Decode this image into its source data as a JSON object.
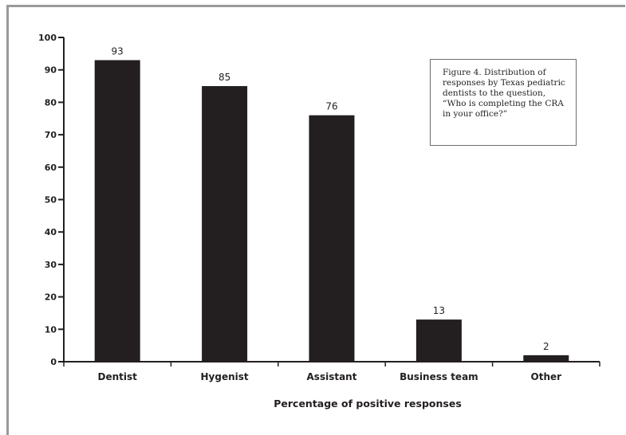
{
  "chart_data": {
    "type": "bar",
    "categories": [
      "Dentist",
      "Hygenist",
      "Assistant",
      "Business team",
      "Other"
    ],
    "values": [
      93,
      85,
      76,
      13,
      2
    ],
    "data_labels": [
      "93",
      "85",
      "76",
      "13",
      "2"
    ],
    "xlabel": "Percentage of positive responses",
    "ylabel": "",
    "ylim": [
      0,
      100
    ],
    "yticks": [
      0,
      10,
      20,
      30,
      40,
      50,
      60,
      70,
      80,
      90,
      100
    ],
    "grid": false,
    "legend": "none",
    "bar_color": "#231f20",
    "caption": "Figure 4.  Distribution of responses by Texas pediatric dentists to the question, “Who is completing the CRA in your office?”"
  }
}
